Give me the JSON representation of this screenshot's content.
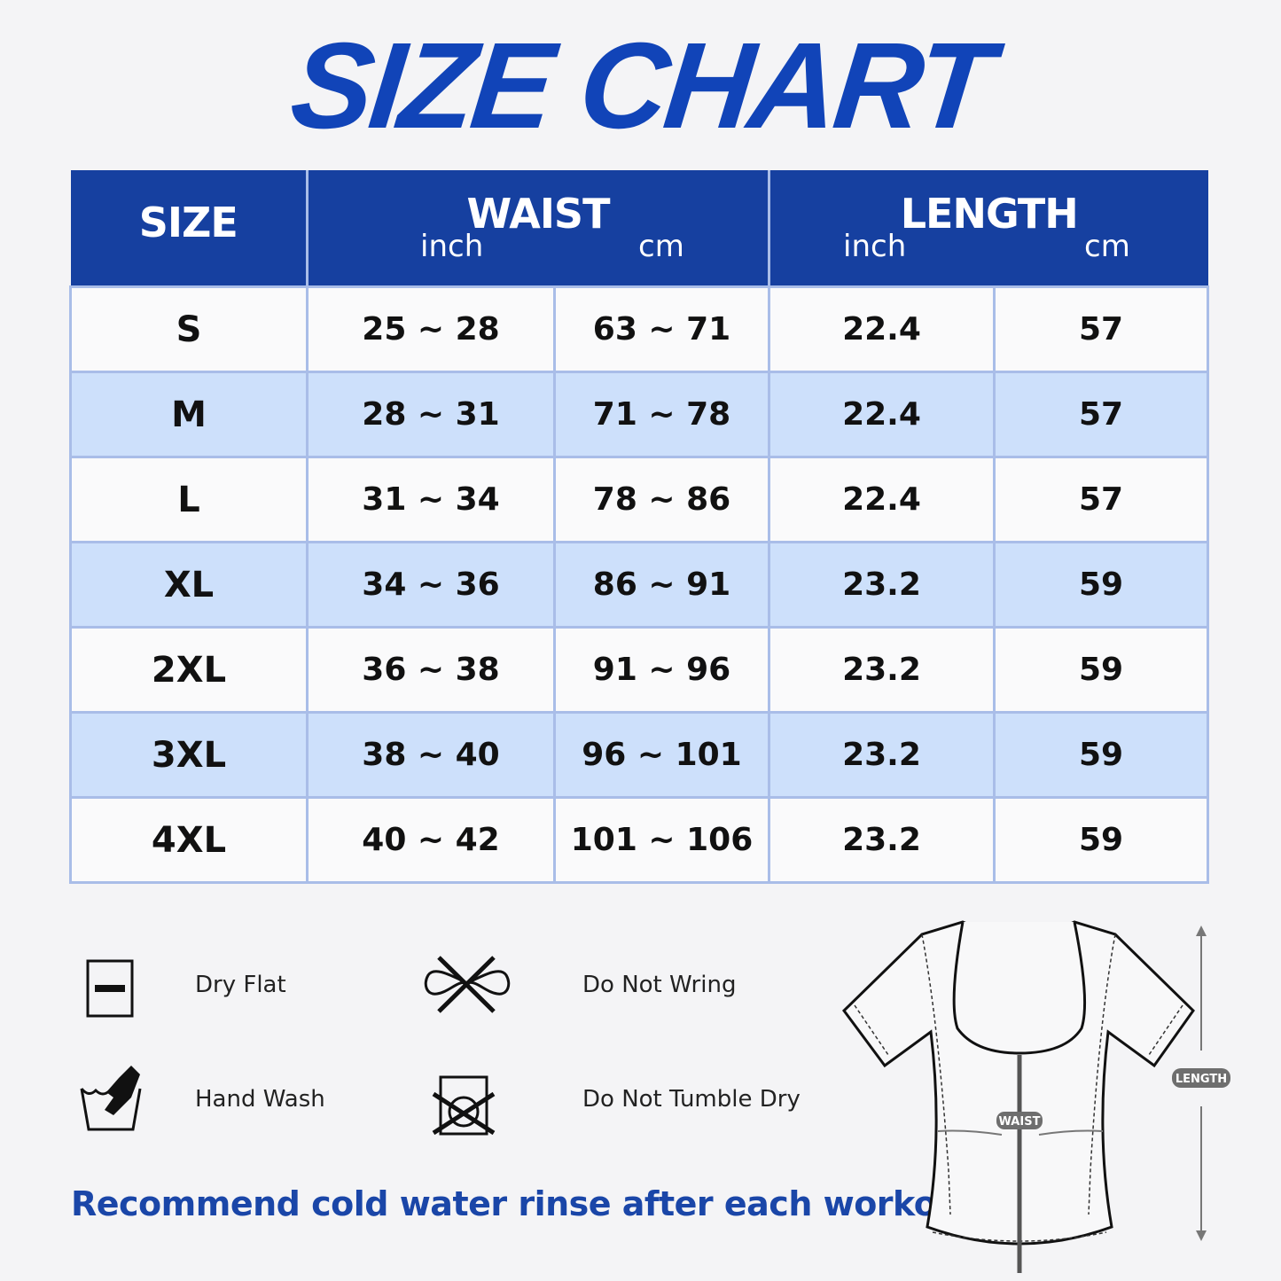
{
  "title": "SIZE CHART",
  "table": {
    "headers": {
      "size": "SIZE",
      "waist": "WAIST",
      "length": "LENGTH",
      "inch": "inch",
      "cm": "cm"
    },
    "rows": [
      {
        "size": "S",
        "waist_in": "25 ~ 28",
        "waist_cm": "63 ~ 71",
        "length_in": "22.4",
        "length_cm": "57"
      },
      {
        "size": "M",
        "waist_in": "28 ~ 31",
        "waist_cm": "71 ~ 78",
        "length_in": "22.4",
        "length_cm": "57"
      },
      {
        "size": "L",
        "waist_in": "31 ~ 34",
        "waist_cm": "78 ~ 86",
        "length_in": "22.4",
        "length_cm": "57"
      },
      {
        "size": "XL",
        "waist_in": "34 ~ 36",
        "waist_cm": "86 ~ 91",
        "length_in": "23.2",
        "length_cm": "59"
      },
      {
        "size": "2XL",
        "waist_in": "36 ~ 38",
        "waist_cm": "91 ~ 96",
        "length_in": "23.2",
        "length_cm": "59"
      },
      {
        "size": "3XL",
        "waist_in": "38 ~ 40",
        "waist_cm": "96 ~ 101",
        "length_in": "23.2",
        "length_cm": "59"
      },
      {
        "size": "4XL",
        "waist_in": "40 ~ 42",
        "waist_cm": "101 ~ 106",
        "length_in": "23.2",
        "length_cm": "59"
      }
    ]
  },
  "care": {
    "dry_flat": "Dry Flat",
    "do_not_wring": "Do Not Wring",
    "hand_wash": "Hand Wash",
    "do_not_tumble_dry": "Do Not Tumble Dry"
  },
  "recommendation": "Recommend cold water rinse after each workout.",
  "diagram": {
    "waist_label": "WAIST",
    "length_label": "LENGTH"
  },
  "colors": {
    "header": "#1640a0",
    "stripe": "#cde0fb",
    "title": "#1144b8"
  }
}
